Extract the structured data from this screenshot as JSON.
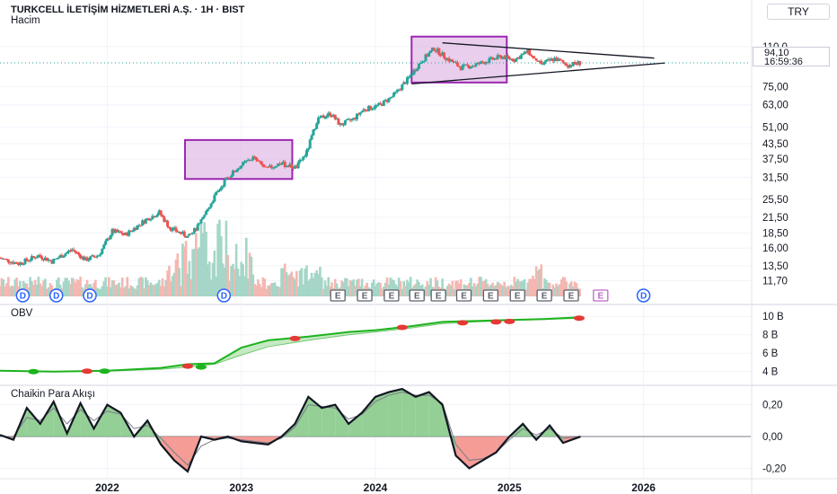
{
  "header": {
    "title": "TURKCELL İLETİŞİM HİZMETLERİ A.Ş. · 1H · BIST",
    "subtitle": "Hacim",
    "currency": "TRY",
    "last_price": "94,10",
    "countdown": "16:59:36"
  },
  "colors": {
    "up": "#26a69a",
    "down": "#ef5350",
    "obv_line": "#1db31d",
    "obv_fill": "#b7e5b4",
    "cmf_pos": "#81c784",
    "cmf_neg": "#f28b82",
    "rect_fill": "#e1bee7",
    "rect_border": "#9c27b0",
    "badge_blue": "#2962ff",
    "badge_e": "#5d606b"
  },
  "chart_data": [
    {
      "type": "candlestick",
      "pane": "price",
      "scale": "log",
      "y_ticks": [
        "110,0",
        "94,10",
        "75,00",
        "63,00",
        "51,00",
        "43,50",
        "37,50",
        "31,50",
        "25,50",
        "21,50",
        "18,50",
        "16,00",
        "13,50",
        "11,70"
      ],
      "y_tick_values": [
        110,
        94.1,
        75,
        63,
        51,
        43.5,
        37.5,
        31.5,
        25.5,
        21.5,
        18.5,
        16,
        13.5,
        11.7
      ],
      "x_ticks": [
        "2022",
        "2023",
        "2024",
        "2025",
        "2026"
      ],
      "x_tick_values": [
        2022.0,
        2023.0,
        2024.0,
        2025.0,
        2026.0
      ],
      "xlim": [
        2021.2,
        2026.8
      ],
      "ylim": [
        10.8,
        135
      ],
      "series_path": [
        [
          2021.2,
          14.6
        ],
        [
          2021.35,
          13.8
        ],
        [
          2021.5,
          14.9
        ],
        [
          2021.6,
          14.1
        ],
        [
          2021.75,
          15.8
        ],
        [
          2021.85,
          14.3
        ],
        [
          2021.95,
          15.0
        ],
        [
          2022.05,
          18.8
        ],
        [
          2022.15,
          18.2
        ],
        [
          2022.3,
          21.0
        ],
        [
          2022.4,
          22.5
        ],
        [
          2022.48,
          19.4
        ],
        [
          2022.55,
          18.6
        ],
        [
          2022.62,
          17.8
        ],
        [
          2022.7,
          20.0
        ],
        [
          2022.8,
          25.5
        ],
        [
          2022.9,
          31.0
        ],
        [
          2023.0,
          35.0
        ],
        [
          2023.1,
          38.0
        ],
        [
          2023.2,
          34.0
        ],
        [
          2023.3,
          36.0
        ],
        [
          2023.42,
          34.5
        ],
        [
          2023.5,
          40.0
        ],
        [
          2023.58,
          55.0
        ],
        [
          2023.68,
          58.0
        ],
        [
          2023.75,
          52.0
        ],
        [
          2023.85,
          55.0
        ],
        [
          2023.92,
          60.0
        ],
        [
          2024.05,
          63.0
        ],
        [
          2024.15,
          69.0
        ],
        [
          2024.25,
          80.0
        ],
        [
          2024.35,
          95.0
        ],
        [
          2024.45,
          108.0
        ],
        [
          2024.55,
          98.0
        ],
        [
          2024.65,
          90.0
        ],
        [
          2024.75,
          92.0
        ],
        [
          2024.85,
          96.0
        ],
        [
          2024.95,
          100.0
        ],
        [
          2025.05,
          97.0
        ],
        [
          2025.15,
          105.0
        ],
        [
          2025.25,
          93.0
        ],
        [
          2025.35,
          98.0
        ],
        [
          2025.45,
          92.0
        ],
        [
          2025.53,
          94.1
        ]
      ],
      "patterns": [
        {
          "from": 2022.58,
          "to": 2023.38,
          "low": 31.0,
          "high": 45.0
        },
        {
          "from": 2024.27,
          "to": 2024.98,
          "low": 78.0,
          "high": 121.0
        }
      ],
      "trendlines": [
        {
          "x": [
            2024.5,
            2026.08
          ],
          "y": [
            114.0,
            98.5
          ]
        },
        {
          "x": [
            2024.27,
            2026.16
          ],
          "y": [
            77.0,
            94.0
          ]
        }
      ],
      "badges": [
        {
          "x": 2021.37,
          "label": "D",
          "kind": "dividend"
        },
        {
          "x": 2021.62,
          "label": "D",
          "kind": "dividend"
        },
        {
          "x": 2021.87,
          "label": "D",
          "kind": "dividend"
        },
        {
          "x": 2022.87,
          "label": "D",
          "kind": "dividend"
        },
        {
          "x": 2023.72,
          "label": "E",
          "kind": "earnings"
        },
        {
          "x": 2023.92,
          "label": "E",
          "kind": "earnings"
        },
        {
          "x": 2024.12,
          "label": "E",
          "kind": "earnings"
        },
        {
          "x": 2024.31,
          "label": "E",
          "kind": "earnings"
        },
        {
          "x": 2024.47,
          "label": "E",
          "kind": "earnings"
        },
        {
          "x": 2024.66,
          "label": "E",
          "kind": "earnings"
        },
        {
          "x": 2024.86,
          "label": "E",
          "kind": "earnings"
        },
        {
          "x": 2025.06,
          "label": "E",
          "kind": "earnings"
        },
        {
          "x": 2025.26,
          "label": "E",
          "kind": "earnings"
        },
        {
          "x": 2025.46,
          "label": "E",
          "kind": "earnings"
        },
        {
          "x": 2025.68,
          "label": "E",
          "kind": "earnings-upcoming"
        },
        {
          "x": 2026.0,
          "label": "D",
          "kind": "dividend"
        }
      ]
    },
    {
      "type": "area",
      "pane": "OBV",
      "title": "OBV",
      "y_ticks": [
        "10 B",
        "8 B",
        "6 B",
        "4 B"
      ],
      "y_tick_values": [
        10,
        8,
        6,
        4
      ],
      "ylim": [
        3.0,
        10.8
      ],
      "x": [
        2021.2,
        2021.6,
        2022.0,
        2022.4,
        2022.6,
        2022.8,
        2023.0,
        2023.2,
        2023.5,
        2023.8,
        2024.0,
        2024.25,
        2024.5,
        2024.75,
        2025.0,
        2025.25,
        2025.53
      ],
      "values": [
        4.1,
        4.0,
        4.1,
        4.4,
        4.8,
        4.9,
        6.6,
        7.4,
        7.8,
        8.3,
        8.5,
        8.9,
        9.4,
        9.5,
        9.6,
        9.7,
        9.9
      ],
      "signal": [
        4.1,
        4.0,
        4.05,
        4.25,
        4.5,
        4.8,
        5.8,
        6.7,
        7.4,
        8.0,
        8.3,
        8.7,
        9.2,
        9.4,
        9.55,
        9.65,
        9.8
      ],
      "markers": [
        {
          "x": 2021.45,
          "y": 4.0,
          "color": "#1db31d"
        },
        {
          "x": 2021.85,
          "y": 4.05,
          "color": "#e53935"
        },
        {
          "x": 2021.98,
          "y": 4.05,
          "color": "#1db31d"
        },
        {
          "x": 2022.6,
          "y": 4.6,
          "color": "#e53935"
        },
        {
          "x": 2022.7,
          "y": 4.5,
          "color": "#1db31d"
        },
        {
          "x": 2023.4,
          "y": 7.6,
          "color": "#e53935"
        },
        {
          "x": 2024.2,
          "y": 8.8,
          "color": "#e53935"
        },
        {
          "x": 2024.65,
          "y": 9.3,
          "color": "#e53935"
        },
        {
          "x": 2024.9,
          "y": 9.4,
          "color": "#e53935"
        },
        {
          "x": 2025.0,
          "y": 9.45,
          "color": "#e53935"
        },
        {
          "x": 2025.52,
          "y": 9.8,
          "color": "#e53935"
        }
      ]
    },
    {
      "type": "area",
      "pane": "CMF",
      "title": "Chaikin Para Akışı",
      "y_ticks": [
        "0,20",
        "0,00",
        "-0,20"
      ],
      "y_tick_values": [
        0.2,
        0.0,
        -0.2
      ],
      "ylim": [
        -0.26,
        0.3
      ],
      "x": [
        2021.2,
        2021.3,
        2021.4,
        2021.5,
        2021.6,
        2021.7,
        2021.8,
        2021.9,
        2022.0,
        2022.1,
        2022.2,
        2022.3,
        2022.4,
        2022.5,
        2022.6,
        2022.7,
        2022.8,
        2022.9,
        2023.0,
        2023.1,
        2023.2,
        2023.3,
        2023.4,
        2023.5,
        2023.6,
        2023.7,
        2023.8,
        2023.9,
        2024.0,
        2024.1,
        2024.2,
        2024.3,
        2024.4,
        2024.5,
        2024.6,
        2024.7,
        2024.8,
        2024.9,
        2025.0,
        2025.1,
        2025.2,
        2025.3,
        2025.4,
        2025.53
      ],
      "values": [
        0.01,
        -0.02,
        0.18,
        0.08,
        0.22,
        0.02,
        0.21,
        0.05,
        0.2,
        0.15,
        0.0,
        0.1,
        -0.05,
        -0.15,
        -0.22,
        0.0,
        -0.02,
        0.0,
        -0.03,
        -0.04,
        -0.05,
        0.0,
        0.08,
        0.25,
        0.18,
        0.2,
        0.08,
        0.15,
        0.25,
        0.28,
        0.3,
        0.25,
        0.28,
        0.2,
        -0.12,
        -0.2,
        -0.15,
        -0.1,
        0.0,
        0.08,
        -0.02,
        0.07,
        -0.04,
        0.0
      ],
      "signal": [
        0.0,
        0.0,
        0.12,
        0.1,
        0.18,
        0.08,
        0.17,
        0.1,
        0.16,
        0.14,
        0.05,
        0.07,
        -0.01,
        -0.1,
        -0.18,
        -0.06,
        -0.02,
        -0.01,
        -0.02,
        -0.03,
        -0.04,
        -0.01,
        0.06,
        0.2,
        0.19,
        0.18,
        0.11,
        0.14,
        0.22,
        0.26,
        0.28,
        0.26,
        0.26,
        0.21,
        -0.05,
        -0.15,
        -0.14,
        -0.1,
        -0.02,
        0.05,
        0.01,
        0.05,
        -0.01,
        0.0
      ]
    }
  ]
}
